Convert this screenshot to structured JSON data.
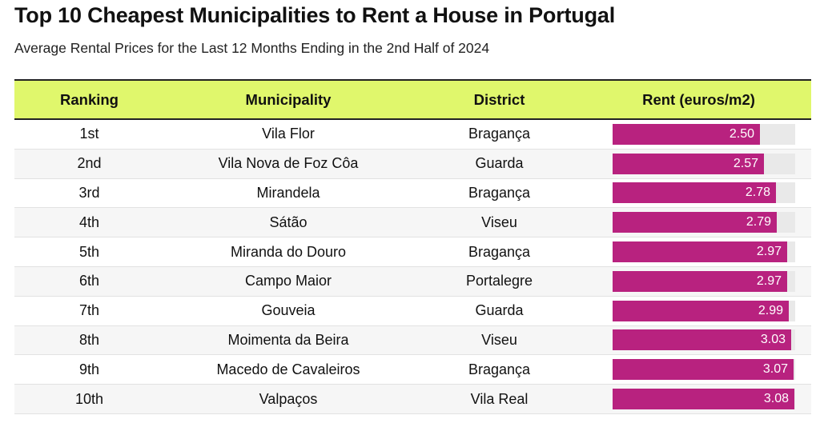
{
  "title": "Top 10 Cheapest Municipalities to Rent a House in Portugal",
  "subtitle": "Average Rental Prices for the Last 12 Months Ending in the 2nd Half of 2024",
  "headers": {
    "ranking": "Ranking",
    "municipality": "Municipality",
    "district": "District",
    "rent": "Rent (euros/m2)"
  },
  "colors": {
    "header_bg": "#e0f76c",
    "bar": "#b8227f",
    "bar_track": "#e9e9e9"
  },
  "chart_data": {
    "type": "table",
    "title": "Top 10 Cheapest Municipalities to Rent a House in Portugal",
    "subtitle": "Average Rental Prices for the Last 12 Months Ending in the 2nd Half of 2024",
    "bar_max": 3.1,
    "rows": [
      {
        "rank": "1st",
        "municipality": "Vila Flor",
        "district": "Bragança",
        "rent": 2.5,
        "rent_label": "2.50"
      },
      {
        "rank": "2nd",
        "municipality": "Vila Nova de Foz Côa",
        "district": "Guarda",
        "rent": 2.57,
        "rent_label": "2.57"
      },
      {
        "rank": "3rd",
        "municipality": "Mirandela",
        "district": "Bragança",
        "rent": 2.78,
        "rent_label": "2.78"
      },
      {
        "rank": "4th",
        "municipality": "Sátão",
        "district": "Viseu",
        "rent": 2.79,
        "rent_label": "2.79"
      },
      {
        "rank": "5th",
        "municipality": "Miranda do Douro",
        "district": "Bragança",
        "rent": 2.97,
        "rent_label": "2.97"
      },
      {
        "rank": "6th",
        "municipality": "Campo Maior",
        "district": "Portalegre",
        "rent": 2.97,
        "rent_label": "2.97"
      },
      {
        "rank": "7th",
        "municipality": "Gouveia",
        "district": "Guarda",
        "rent": 2.99,
        "rent_label": "2.99"
      },
      {
        "rank": "8th",
        "municipality": "Moimenta da Beira",
        "district": "Viseu",
        "rent": 3.03,
        "rent_label": "3.03"
      },
      {
        "rank": "9th",
        "municipality": "Macedo de Cavaleiros",
        "district": "Bragança",
        "rent": 3.07,
        "rent_label": "3.07"
      },
      {
        "rank": "10th",
        "municipality": "Valpaços",
        "district": "Vila Real",
        "rent": 3.08,
        "rent_label": "3.08"
      }
    ]
  }
}
